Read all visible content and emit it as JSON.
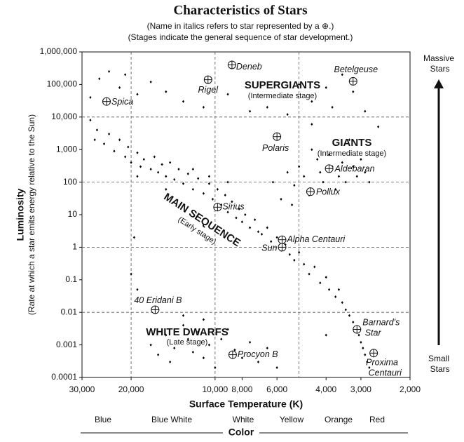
{
  "chart_data": {
    "type": "scatter",
    "title": "Characteristics of Stars",
    "subtitle": [
      "(Name in italics refers to star represented by a ⊕.)",
      "(Stages indicate the general sequence of star development.)"
    ],
    "x_label": "Surface Temperature (K)",
    "y_label": [
      "Luminosity",
      "(Rate at which a star emits energy relative to the Sun)"
    ],
    "xlog": true,
    "ylog": true,
    "xlim": [
      30000,
      2000
    ],
    "ylim": [
      0.0001,
      1000000
    ],
    "xticks": [
      {
        "value": 30000,
        "label": "30,000"
      },
      {
        "value": 20000,
        "label": "20,000"
      },
      {
        "value": 10000,
        "label": "10,000"
      },
      {
        "value": 8000,
        "label": "8,000"
      },
      {
        "value": 6000,
        "label": "6,000"
      },
      {
        "value": 4000,
        "label": "4,000"
      },
      {
        "value": 3000,
        "label": "3,000"
      },
      {
        "value": 2000,
        "label": "2,000"
      }
    ],
    "yticks": [
      {
        "value": 1000000,
        "label": "1,000,000"
      },
      {
        "value": 100000,
        "label": "100,000"
      },
      {
        "value": 10000,
        "label": "10,000"
      },
      {
        "value": 1000,
        "label": "1,000"
      },
      100,
      10,
      1,
      0.1,
      0.01,
      0.001,
      0.0001
    ],
    "xgrid": [
      20000,
      10000,
      5000
    ],
    "ygrid": [
      10000,
      100,
      1,
      0.01
    ],
    "color": "#000000",
    "x": [
      28000,
      27000,
      26500,
      25000,
      24000,
      23000,
      22000,
      21000,
      20500,
      20000,
      19000,
      18500,
      18000,
      17000,
      16500,
      16000,
      15500,
      15000,
      14500,
      14000,
      13500,
      13000,
      12500,
      12000,
      11500,
      11000,
      10500,
      10200,
      9800,
      9500,
      9200,
      9000,
      8700,
      8400,
      8200,
      8000,
      7800,
      7500,
      7200,
      7000,
      6800,
      6500,
      6300,
      6000,
      5800,
      5600,
      5400,
      5200,
      5000,
      4800,
      4600,
      4400,
      4200,
      4000,
      3900,
      3700,
      3600,
      3500,
      3400,
      3300,
      3200,
      3100,
      3050,
      3000,
      2950,
      2900,
      2850,
      2800,
      19000,
      15000,
      12000,
      10500,
      9000,
      28000,
      26000,
      24000,
      22000,
      21000,
      19000,
      17000,
      15000,
      13000,
      11000,
      9000,
      7500,
      6500,
      5500,
      5000,
      4500,
      4000,
      3500,
      3200,
      2900,
      2600,
      4500,
      3800,
      5500,
      5200,
      5000,
      4800,
      4600,
      4500,
      4300,
      4200,
      4100,
      3900,
      3800,
      3700,
      3600,
      3500,
      3400,
      3300,
      3200,
      3100,
      3000,
      2900,
      2800,
      5800,
      6200,
      5300,
      19500,
      20000,
      19000,
      4000,
      17000,
      16000,
      15000,
      14500,
      14000,
      13000,
      12500,
      12000,
      11500,
      11000,
      10500,
      10000,
      9500,
      9000,
      8500,
      8000,
      7500,
      7000,
      6500,
      6000,
      13000,
      11000
    ],
    "values": [
      8000,
      2000,
      4000,
      1500,
      3000,
      900,
      2000,
      600,
      1200,
      400,
      800,
      300,
      500,
      250,
      600,
      200,
      350,
      150,
      400,
      120,
      250,
      90,
      180,
      60,
      130,
      45,
      90,
      30,
      60,
      20,
      40,
      12,
      25,
      8,
      15,
      6,
      10,
      4,
      7,
      3,
      2.5,
      4,
      1.5,
      2,
      0.8,
      1.2,
      0.6,
      0.4,
      0.7,
      0.3,
      0.15,
      0.25,
      0.08,
      0.12,
      0.05,
      0.03,
      0.05,
      0.02,
      0.012,
      0.008,
      0.005,
      0.003,
      0.002,
      0.0012,
      0.0008,
      0.0005,
      0.0003,
      0.0002,
      150,
      60,
      250,
      150,
      100,
      40000,
      150000,
      250000,
      80000,
      200000,
      50000,
      120000,
      60000,
      30000,
      20000,
      50000,
      15000,
      20000,
      12000,
      100000,
      30000,
      80000,
      200000,
      60000,
      15000,
      5000,
      6000,
      20000,
      200,
      80,
      300,
      150,
      40,
      1000,
      500,
      200,
      100,
      700,
      300,
      60,
      150,
      400,
      100,
      2000,
      300,
      150,
      500,
      200,
      100,
      30,
      100,
      20,
      2,
      0.15,
      0.05,
      0.002,
      0.001,
      0.0005,
      0.002,
      0.0003,
      0.0008,
      0.004,
      0.0015,
      0.0006,
      0.0025,
      0.0004,
      0.001,
      0.0002,
      0.0015,
      0.003,
      0.0007,
      0.0004,
      0.0012,
      0.0003,
      0.0008,
      0.0002,
      0.008,
      0.006
    ],
    "stars": [
      {
        "name": "Deneb",
        "x": 8700,
        "y": 400000
      },
      {
        "name": "Rigel",
        "x": 10600,
        "y": 140000
      },
      {
        "name": "Betelgeuse",
        "x": 3200,
        "y": 125000
      },
      {
        "name": "Spica",
        "x": 24500,
        "y": 30000
      },
      {
        "name": "Polaris",
        "x": 6000,
        "y": 2500
      },
      {
        "name": "Aldebaran",
        "x": 3900,
        "y": 260
      },
      {
        "name": "Pollux",
        "x": 4550,
        "y": 51
      },
      {
        "name": "Sirius",
        "x": 9800,
        "y": 17
      },
      {
        "name": "Alpha Centauri",
        "x": 5750,
        "y": 1.7
      },
      {
        "name": "Sun",
        "x": 5750,
        "y": 1
      },
      {
        "name": "40 Eridani B",
        "x": 16400,
        "y": 0.012
      },
      {
        "name": "Barnard's Star",
        "x": 3100,
        "y": 0.003
      },
      {
        "name": "Procyon B",
        "x": 8650,
        "y": 0.0005
      },
      {
        "name": "Proxima Centauri",
        "x": 2700,
        "y": 0.00056
      }
    ],
    "regions": [
      {
        "name": "SUPERGIANTS",
        "stage": "(Intermediate stage)"
      },
      {
        "name": "GIANTS",
        "stage": "(Intermediate stage)"
      },
      {
        "name": "MAIN SEQUENCE",
        "stage": "(Early stage)"
      },
      {
        "name": "WHITE DWARFS",
        "stage": "(Late stage)"
      }
    ],
    "color_labels": [
      "Blue",
      "Blue White",
      "White",
      "Yellow",
      "Orange",
      "Red"
    ],
    "color_axis_label": "Color",
    "mass_labels": [
      "Massive Stars",
      "Small Stars"
    ]
  }
}
